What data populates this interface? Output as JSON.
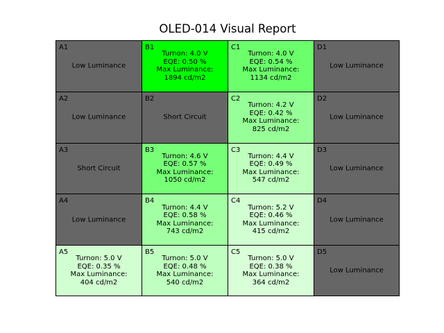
{
  "chart_data": {
    "type": "heatmap",
    "title": "OLED-014 Visual Report",
    "columns": [
      "A",
      "B",
      "C",
      "D"
    ],
    "rows": [
      "1",
      "2",
      "3",
      "4",
      "5"
    ],
    "colors": {
      "failed": "#666666",
      "scale_low": "#d8ffd8",
      "scale_high": "#00ff00",
      "border": "#000000"
    },
    "cells": [
      {
        "id": "A1",
        "status": "Low Luminance"
      },
      {
        "id": "B1",
        "turnon_v": 4.0,
        "eqe_pct": 0.5,
        "max_luminance": 1894,
        "lines": [
          "Turnon: 4.0 V",
          "EQE: 0.50 %",
          "Max Luminance:",
          "1894 cd/m2"
        ]
      },
      {
        "id": "C1",
        "turnon_v": 4.0,
        "eqe_pct": 0.54,
        "max_luminance": 1134,
        "lines": [
          "Turnon: 4.0 V",
          "EQE: 0.54 %",
          "Max Luminance:",
          "1134 cd/m2"
        ]
      },
      {
        "id": "D1",
        "status": "Low Luminance"
      },
      {
        "id": "A2",
        "status": "Low Luminance"
      },
      {
        "id": "B2",
        "status": "Short Circuit"
      },
      {
        "id": "C2",
        "turnon_v": 4.2,
        "eqe_pct": 0.42,
        "max_luminance": 825,
        "lines": [
          "Turnon: 4.2 V",
          "EQE: 0.42 %",
          "Max Luminance:",
          "825 cd/m2"
        ]
      },
      {
        "id": "D2",
        "status": "Low Luminance"
      },
      {
        "id": "A3",
        "status": "Short Circuit"
      },
      {
        "id": "B3",
        "turnon_v": 4.6,
        "eqe_pct": 0.57,
        "max_luminance": 1050,
        "lines": [
          "Turnon: 4.6 V",
          "EQE: 0.57 %",
          "Max Luminance:",
          "1050 cd/m2"
        ]
      },
      {
        "id": "C3",
        "turnon_v": 4.4,
        "eqe_pct": 0.49,
        "max_luminance": 547,
        "lines": [
          "Turnon: 4.4 V",
          "EQE: 0.49 %",
          "Max Luminance:",
          "547 cd/m2"
        ]
      },
      {
        "id": "D3",
        "status": "Low Luminance"
      },
      {
        "id": "A4",
        "status": "Low Luminance"
      },
      {
        "id": "B4",
        "turnon_v": 4.4,
        "eqe_pct": 0.58,
        "max_luminance": 743,
        "lines": [
          "Turnon: 4.4 V",
          "EQE: 0.58 %",
          "Max Luminance:",
          "743 cd/m2"
        ]
      },
      {
        "id": "C4",
        "turnon_v": 5.2,
        "eqe_pct": 0.46,
        "max_luminance": 415,
        "lines": [
          "Turnon: 5.2 V",
          "EQE: 0.46 %",
          "Max Luminance:",
          "415 cd/m2"
        ]
      },
      {
        "id": "D4",
        "status": "Low Luminance"
      },
      {
        "id": "A5",
        "turnon_v": 5.0,
        "eqe_pct": 0.35,
        "max_luminance": 404,
        "lines": [
          "Turnon: 5.0 V",
          "EQE: 0.35 %",
          "Max Luminance:",
          "404 cd/m2"
        ]
      },
      {
        "id": "B5",
        "turnon_v": 5.0,
        "eqe_pct": 0.48,
        "max_luminance": 540,
        "lines": [
          "Turnon: 5.0 V",
          "EQE: 0.48 %",
          "Max Luminance:",
          "540 cd/m2"
        ]
      },
      {
        "id": "C5",
        "turnon_v": 5.0,
        "eqe_pct": 0.38,
        "max_luminance": 364,
        "lines": [
          "Turnon: 5.0 V",
          "EQE: 0.38 %",
          "Max Luminance:",
          "364 cd/m2"
        ]
      },
      {
        "id": "D5",
        "status": "Low Luminance"
      }
    ]
  }
}
